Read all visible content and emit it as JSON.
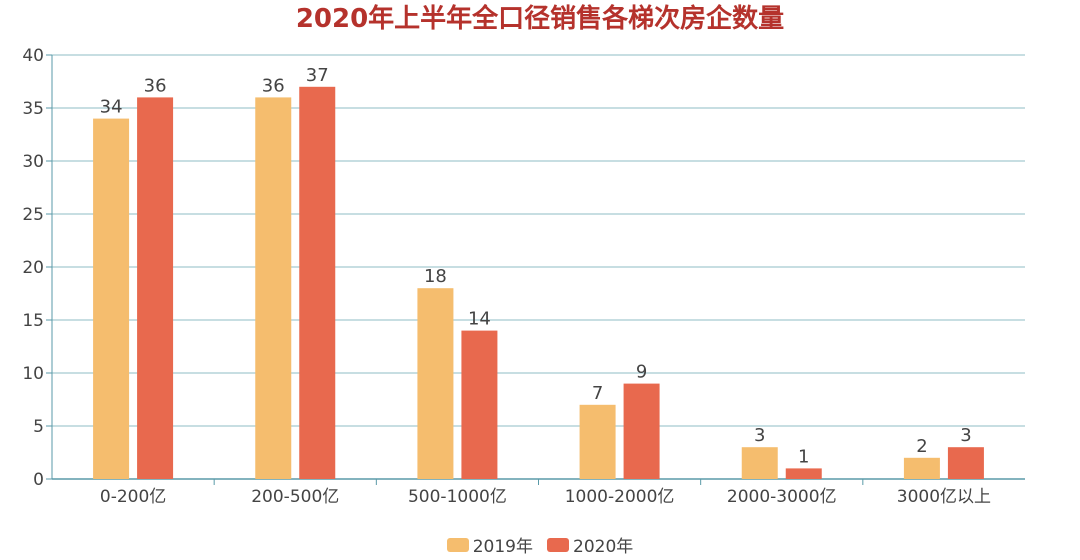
{
  "colors": {
    "title": "#b5322c",
    "grid": "#8fbcc6",
    "axis": "#5a9aa8",
    "text": "#444444",
    "series": [
      "#f5bd6e",
      "#e8694e"
    ]
  },
  "chart_data": {
    "type": "bar",
    "title": "2020年上半年全口径销售各梯次房企数量",
    "categories": [
      "0-200亿",
      "200-500亿",
      "500-1000亿",
      "1000-2000亿",
      "2000-3000亿",
      "3000亿以上"
    ],
    "series": [
      {
        "name": "2019年",
        "values": [
          34,
          36,
          18,
          7,
          3,
          2
        ]
      },
      {
        "name": "2020年",
        "values": [
          36,
          37,
          14,
          9,
          1,
          3
        ]
      }
    ],
    "ylim": [
      0,
      40
    ],
    "yticks": [
      0,
      5,
      10,
      15,
      20,
      25,
      30,
      35,
      40
    ],
    "grid": true,
    "legend": "bottom-center"
  }
}
